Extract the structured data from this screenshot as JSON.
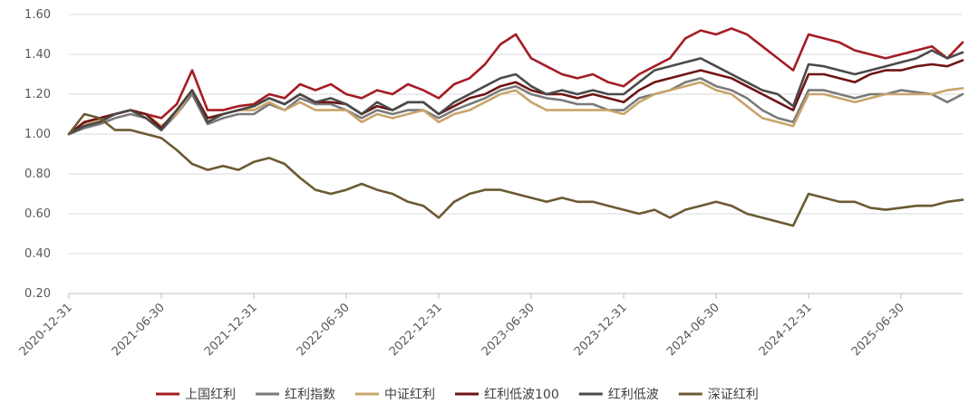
{
  "chart_data": {
    "type": "line",
    "title": "",
    "xlabel": "",
    "ylabel": "",
    "ylim": [
      0.2,
      1.6
    ],
    "y_ticks": [
      "0.20",
      "0.40",
      "0.60",
      "0.80",
      "1.00",
      "1.20",
      "1.40",
      "1.60"
    ],
    "y_tick_values": [
      0.2,
      0.4,
      0.6,
      0.8,
      1.0,
      1.2,
      1.4,
      1.6
    ],
    "x_ticks": [
      "2020-12-31",
      "2021-06-30",
      "2021-12-31",
      "2022-06-30",
      "2022-12-31",
      "2023-06-30",
      "2023-12-31",
      "2024-06-30",
      "2024-12-31",
      "2025-06-30"
    ],
    "x_range_months": [
      0,
      58
    ],
    "grid": true,
    "legend_position": "bottom",
    "x_months": [
      0,
      1,
      2,
      3,
      4,
      5,
      6,
      7,
      8,
      9,
      10,
      11,
      12,
      13,
      14,
      15,
      16,
      17,
      18,
      19,
      20,
      21,
      22,
      23,
      24,
      25,
      26,
      27,
      28,
      29,
      30,
      31,
      32,
      33,
      34,
      35,
      36,
      37,
      38,
      39,
      40,
      41,
      42,
      43,
      44,
      45,
      46,
      47,
      48,
      49,
      50,
      51,
      52,
      53,
      54,
      55,
      56,
      57,
      58
    ],
    "series": [
      {
        "name": "上国红利",
        "color": "#a51c24",
        "values": [
          1.0,
          1.05,
          1.08,
          1.1,
          1.12,
          1.1,
          1.08,
          1.15,
          1.32,
          1.12,
          1.12,
          1.14,
          1.15,
          1.2,
          1.18,
          1.25,
          1.22,
          1.25,
          1.2,
          1.18,
          1.22,
          1.2,
          1.25,
          1.22,
          1.18,
          1.25,
          1.28,
          1.35,
          1.45,
          1.5,
          1.38,
          1.34,
          1.3,
          1.28,
          1.3,
          1.26,
          1.24,
          1.3,
          1.34,
          1.38,
          1.48,
          1.52,
          1.5,
          1.53,
          1.5,
          1.44,
          1.38,
          1.32,
          1.5,
          1.48,
          1.46,
          1.42,
          1.4,
          1.38,
          1.4,
          1.42,
          1.44,
          1.38,
          1.46
        ]
      },
      {
        "name": "红利指数",
        "color": "#7a7a7a",
        "values": [
          1.0,
          1.03,
          1.05,
          1.08,
          1.1,
          1.08,
          1.02,
          1.1,
          1.2,
          1.05,
          1.08,
          1.1,
          1.1,
          1.15,
          1.12,
          1.18,
          1.15,
          1.15,
          1.12,
          1.08,
          1.12,
          1.1,
          1.12,
          1.12,
          1.08,
          1.12,
          1.15,
          1.18,
          1.22,
          1.24,
          1.2,
          1.18,
          1.17,
          1.15,
          1.15,
          1.12,
          1.12,
          1.18,
          1.2,
          1.22,
          1.26,
          1.28,
          1.24,
          1.22,
          1.18,
          1.12,
          1.08,
          1.06,
          1.22,
          1.22,
          1.2,
          1.18,
          1.2,
          1.2,
          1.22,
          1.21,
          1.2,
          1.16,
          1.2
        ]
      },
      {
        "name": "中证红利",
        "color": "#c8a46a",
        "values": [
          1.0,
          1.05,
          1.07,
          1.1,
          1.12,
          1.1,
          1.04,
          1.1,
          1.22,
          1.08,
          1.1,
          1.12,
          1.12,
          1.16,
          1.12,
          1.16,
          1.12,
          1.12,
          1.12,
          1.06,
          1.1,
          1.08,
          1.1,
          1.12,
          1.06,
          1.1,
          1.12,
          1.16,
          1.2,
          1.22,
          1.16,
          1.12,
          1.12,
          1.12,
          1.12,
          1.12,
          1.1,
          1.16,
          1.2,
          1.22,
          1.24,
          1.26,
          1.22,
          1.2,
          1.14,
          1.08,
          1.06,
          1.04,
          1.2,
          1.2,
          1.18,
          1.16,
          1.18,
          1.2,
          1.2,
          1.2,
          1.2,
          1.22,
          1.23
        ]
      },
      {
        "name": "红利低波100",
        "color": "#6e1414",
        "values": [
          1.0,
          1.06,
          1.08,
          1.1,
          1.12,
          1.1,
          1.03,
          1.12,
          1.22,
          1.08,
          1.1,
          1.12,
          1.14,
          1.18,
          1.15,
          1.2,
          1.16,
          1.16,
          1.15,
          1.1,
          1.14,
          1.12,
          1.16,
          1.16,
          1.1,
          1.14,
          1.18,
          1.2,
          1.24,
          1.26,
          1.22,
          1.2,
          1.2,
          1.18,
          1.2,
          1.18,
          1.16,
          1.22,
          1.26,
          1.28,
          1.3,
          1.32,
          1.3,
          1.28,
          1.24,
          1.2,
          1.16,
          1.12,
          1.3,
          1.3,
          1.28,
          1.26,
          1.3,
          1.32,
          1.32,
          1.34,
          1.35,
          1.34,
          1.37
        ]
      },
      {
        "name": "红利低波",
        "color": "#4a4a4a",
        "values": [
          1.0,
          1.04,
          1.06,
          1.1,
          1.12,
          1.08,
          1.02,
          1.12,
          1.22,
          1.06,
          1.1,
          1.12,
          1.14,
          1.18,
          1.15,
          1.2,
          1.16,
          1.18,
          1.15,
          1.1,
          1.16,
          1.12,
          1.16,
          1.16,
          1.1,
          1.16,
          1.2,
          1.24,
          1.28,
          1.3,
          1.24,
          1.2,
          1.22,
          1.2,
          1.22,
          1.2,
          1.2,
          1.26,
          1.32,
          1.34,
          1.36,
          1.38,
          1.34,
          1.3,
          1.26,
          1.22,
          1.2,
          1.14,
          1.35,
          1.34,
          1.32,
          1.3,
          1.32,
          1.34,
          1.36,
          1.38,
          1.42,
          1.38,
          1.41
        ]
      },
      {
        "name": "深证红利",
        "color": "#6b5a32",
        "values": [
          1.0,
          1.1,
          1.08,
          1.02,
          1.02,
          1.0,
          0.98,
          0.92,
          0.85,
          0.82,
          0.84,
          0.82,
          0.86,
          0.88,
          0.85,
          0.78,
          0.72,
          0.7,
          0.72,
          0.75,
          0.72,
          0.7,
          0.66,
          0.64,
          0.58,
          0.66,
          0.7,
          0.72,
          0.72,
          0.7,
          0.68,
          0.66,
          0.68,
          0.66,
          0.66,
          0.64,
          0.62,
          0.6,
          0.62,
          0.58,
          0.62,
          0.64,
          0.66,
          0.64,
          0.6,
          0.58,
          0.56,
          0.54,
          0.7,
          0.68,
          0.66,
          0.66,
          0.63,
          0.62,
          0.63,
          0.64,
          0.64,
          0.66,
          0.67
        ]
      }
    ]
  }
}
